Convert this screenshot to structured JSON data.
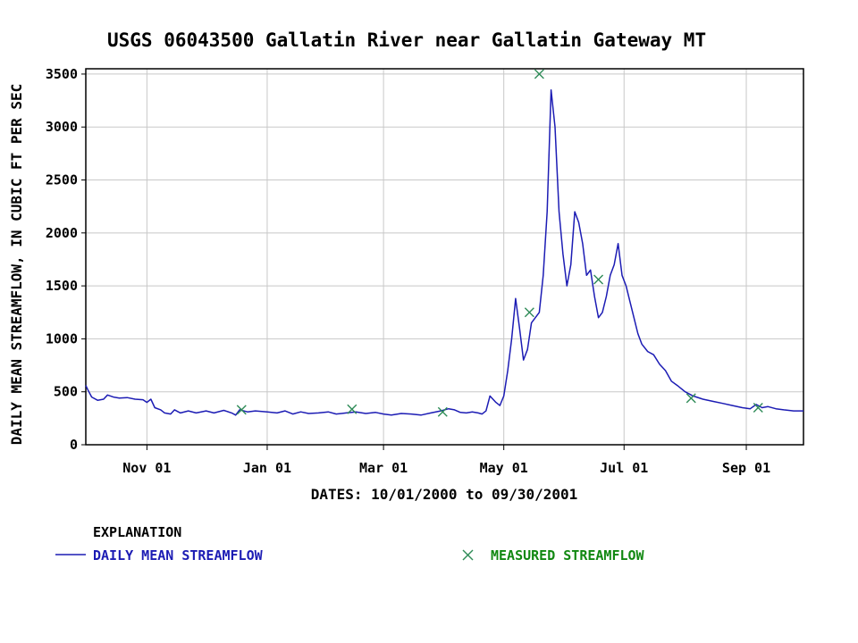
{
  "chart_data": {
    "type": "line",
    "title": "USGS 06043500 Gallatin River near Gallatin Gateway MT",
    "xlabel": "DATES: 10/01/2000 to 09/30/2001",
    "ylabel": "DAILY MEAN STREAMFLOW, IN CUBIC FT PER SEC",
    "xlim": [
      "2000-10-01",
      "2001-09-30"
    ],
    "ylim": [
      0,
      3550
    ],
    "x_ticks": [
      {
        "date": "2000-11-01",
        "label": "Nov 01"
      },
      {
        "date": "2001-01-01",
        "label": "Jan 01"
      },
      {
        "date": "2001-03-01",
        "label": "Mar 01"
      },
      {
        "date": "2001-05-01",
        "label": "May 01"
      },
      {
        "date": "2001-07-01",
        "label": "Jul 01"
      },
      {
        "date": "2001-09-01",
        "label": "Sep 01"
      }
    ],
    "y_ticks": [
      0,
      500,
      1000,
      1500,
      2000,
      2500,
      3000,
      3500
    ],
    "grid": true,
    "explanation_label": "EXPLANATION",
    "series": [
      {
        "name": "DAILY MEAN STREAMFLOW",
        "color": "#1c1cb4",
        "style": "line",
        "points": [
          [
            "2000-10-01",
            560
          ],
          [
            "2000-10-02",
            520
          ],
          [
            "2000-10-04",
            450
          ],
          [
            "2000-10-07",
            420
          ],
          [
            "2000-10-10",
            430
          ],
          [
            "2000-10-12",
            470
          ],
          [
            "2000-10-15",
            450
          ],
          [
            "2000-10-18",
            440
          ],
          [
            "2000-10-22",
            445
          ],
          [
            "2000-10-26",
            430
          ],
          [
            "2000-10-30",
            425
          ],
          [
            "2000-11-01",
            400
          ],
          [
            "2000-11-03",
            430
          ],
          [
            "2000-11-05",
            350
          ],
          [
            "2000-11-08",
            330
          ],
          [
            "2000-11-10",
            300
          ],
          [
            "2000-11-13",
            290
          ],
          [
            "2000-11-15",
            330
          ],
          [
            "2000-11-18",
            300
          ],
          [
            "2000-11-22",
            320
          ],
          [
            "2000-11-26",
            300
          ],
          [
            "2000-12-01",
            320
          ],
          [
            "2000-12-05",
            300
          ],
          [
            "2000-12-10",
            325
          ],
          [
            "2000-12-14",
            300
          ],
          [
            "2000-12-16",
            280
          ],
          [
            "2000-12-18",
            330
          ],
          [
            "2000-12-22",
            310
          ],
          [
            "2000-12-26",
            320
          ],
          [
            "2001-01-01",
            310
          ],
          [
            "2001-01-06",
            300
          ],
          [
            "2001-01-10",
            320
          ],
          [
            "2001-01-14",
            290
          ],
          [
            "2001-01-18",
            310
          ],
          [
            "2001-01-22",
            295
          ],
          [
            "2001-01-27",
            300
          ],
          [
            "2001-02-01",
            310
          ],
          [
            "2001-02-05",
            290
          ],
          [
            "2001-02-10",
            300
          ],
          [
            "2001-02-15",
            310
          ],
          [
            "2001-02-20",
            295
          ],
          [
            "2001-02-25",
            305
          ],
          [
            "2001-03-01",
            290
          ],
          [
            "2001-03-05",
            280
          ],
          [
            "2001-03-10",
            295
          ],
          [
            "2001-03-15",
            290
          ],
          [
            "2001-03-20",
            280
          ],
          [
            "2001-03-25",
            300
          ],
          [
            "2001-03-30",
            320
          ],
          [
            "2001-04-03",
            340
          ],
          [
            "2001-04-06",
            330
          ],
          [
            "2001-04-09",
            305
          ],
          [
            "2001-04-12",
            300
          ],
          [
            "2001-04-15",
            310
          ],
          [
            "2001-04-18",
            300
          ],
          [
            "2001-04-20",
            290
          ],
          [
            "2001-04-22",
            320
          ],
          [
            "2001-04-24",
            460
          ],
          [
            "2001-04-27",
            400
          ],
          [
            "2001-04-29",
            370
          ],
          [
            "2001-05-01",
            460
          ],
          [
            "2001-05-03",
            700
          ],
          [
            "2001-05-05",
            1000
          ],
          [
            "2001-05-07",
            1380
          ],
          [
            "2001-05-09",
            1100
          ],
          [
            "2001-05-11",
            800
          ],
          [
            "2001-05-13",
            900
          ],
          [
            "2001-05-15",
            1150
          ],
          [
            "2001-05-17",
            1200
          ],
          [
            "2001-05-19",
            1250
          ],
          [
            "2001-05-21",
            1600
          ],
          [
            "2001-05-23",
            2200
          ],
          [
            "2001-05-25",
            3350
          ],
          [
            "2001-05-27",
            3000
          ],
          [
            "2001-05-29",
            2200
          ],
          [
            "2001-05-31",
            1800
          ],
          [
            "2001-06-02",
            1500
          ],
          [
            "2001-06-04",
            1700
          ],
          [
            "2001-06-06",
            2200
          ],
          [
            "2001-06-08",
            2100
          ],
          [
            "2001-06-10",
            1900
          ],
          [
            "2001-06-12",
            1600
          ],
          [
            "2001-06-14",
            1650
          ],
          [
            "2001-06-16",
            1400
          ],
          [
            "2001-06-18",
            1200
          ],
          [
            "2001-06-20",
            1250
          ],
          [
            "2001-06-22",
            1400
          ],
          [
            "2001-06-24",
            1600
          ],
          [
            "2001-06-26",
            1700
          ],
          [
            "2001-06-28",
            1900
          ],
          [
            "2001-06-30",
            1600
          ],
          [
            "2001-07-02",
            1500
          ],
          [
            "2001-07-04",
            1350
          ],
          [
            "2001-07-06",
            1200
          ],
          [
            "2001-07-08",
            1050
          ],
          [
            "2001-07-10",
            950
          ],
          [
            "2001-07-13",
            880
          ],
          [
            "2001-07-16",
            850
          ],
          [
            "2001-07-19",
            760
          ],
          [
            "2001-07-22",
            700
          ],
          [
            "2001-07-25",
            600
          ],
          [
            "2001-07-28",
            560
          ],
          [
            "2001-08-01",
            500
          ],
          [
            "2001-08-05",
            460
          ],
          [
            "2001-08-10",
            430
          ],
          [
            "2001-08-15",
            410
          ],
          [
            "2001-08-20",
            390
          ],
          [
            "2001-08-25",
            370
          ],
          [
            "2001-08-30",
            350
          ],
          [
            "2001-09-03",
            340
          ],
          [
            "2001-09-06",
            380
          ],
          [
            "2001-09-09",
            350
          ],
          [
            "2001-09-12",
            360
          ],
          [
            "2001-09-16",
            340
          ],
          [
            "2001-09-20",
            330
          ],
          [
            "2001-09-25",
            320
          ],
          [
            "2001-09-30",
            320
          ]
        ]
      },
      {
        "name": "MEASURED STREAMFLOW",
        "color": "#2e8b57",
        "style": "marker-x",
        "points": [
          [
            "2000-12-19",
            330
          ],
          [
            "2001-02-13",
            335
          ],
          [
            "2001-03-31",
            310
          ],
          [
            "2001-05-14",
            1250
          ],
          [
            "2001-05-19",
            3500
          ],
          [
            "2001-06-18",
            1560
          ],
          [
            "2001-08-04",
            440
          ],
          [
            "2001-09-07",
            350
          ]
        ]
      }
    ]
  }
}
